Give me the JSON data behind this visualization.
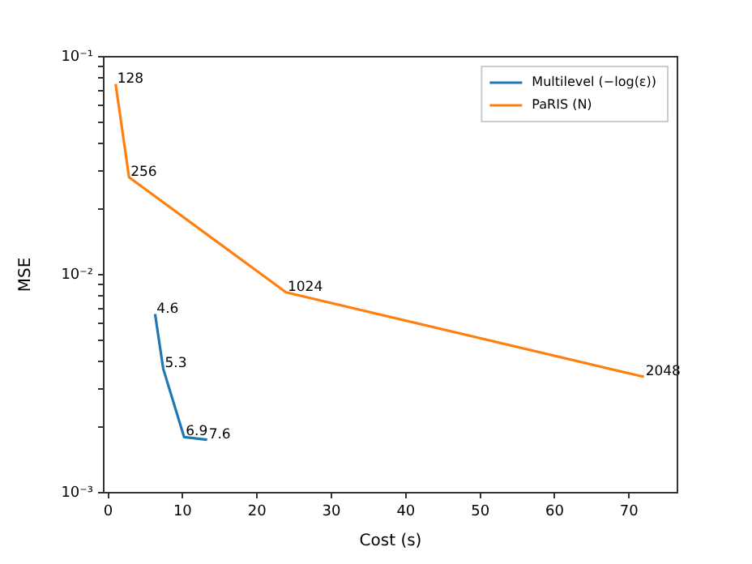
{
  "chart_data": {
    "type": "line",
    "xlabel": "Cost (s)",
    "ylabel": "MSE",
    "log": "y",
    "grid": false,
    "legend": "top right",
    "marker": "none",
    "line_style": "solid",
    "xlim": [
      -0.6,
      76.5
    ],
    "xticks": [
      0,
      10,
      20,
      30,
      40,
      50,
      60,
      70
    ],
    "ylim": [
      0.001,
      0.1
    ],
    "yticks": [
      {
        "value": 0.001,
        "label": "10⁻³"
      },
      {
        "value": 0.002,
        "label": null
      },
      {
        "value": 0.003,
        "label": null
      },
      {
        "value": 0.004,
        "label": null
      },
      {
        "value": 0.005,
        "label": null
      },
      {
        "value": 0.006,
        "label": null
      },
      {
        "value": 0.007,
        "label": null
      },
      {
        "value": 0.008,
        "label": null
      },
      {
        "value": 0.009,
        "label": null
      },
      {
        "value": 0.01,
        "label": "10⁻²"
      },
      {
        "value": 0.02,
        "label": null
      },
      {
        "value": 0.03,
        "label": null
      },
      {
        "value": 0.04,
        "label": null
      },
      {
        "value": 0.05,
        "label": null
      },
      {
        "value": 0.06,
        "label": null
      },
      {
        "value": 0.07,
        "label": null
      },
      {
        "value": 0.08,
        "label": null
      },
      {
        "value": 0.09,
        "label": null
      },
      {
        "value": 0.1,
        "label": "10⁻¹"
      }
    ],
    "series": [
      {
        "name": "Multilevel (−log(ε))",
        "color": "#1f77b4",
        "x": [
          6.3,
          7.4,
          10.2,
          13.3
        ],
        "values": [
          0.0066,
          0.0037,
          0.0018,
          0.00175
        ]
      },
      {
        "name": "PaRIS (N)",
        "color": "#ff7f0e",
        "x": [
          1.0,
          2.8,
          23.9,
          72
        ],
        "values": [
          0.075,
          0.028,
          0.0083,
          0.0034
        ]
      }
    ],
    "annotations": [
      {
        "text": "4.6",
        "x": 6.3,
        "y": 0.0066
      },
      {
        "text": "5.3",
        "x": 7.4,
        "y": 0.0037
      },
      {
        "text": "6.9",
        "x": 10.2,
        "y": 0.0018
      },
      {
        "text": "7.6",
        "x": 13.3,
        "y": 0.00175
      },
      {
        "text": "128",
        "x": 1.0,
        "y": 0.075
      },
      {
        "text": "256",
        "x": 2.8,
        "y": 0.028
      },
      {
        "text": "1024",
        "x": 23.9,
        "y": 0.0083
      },
      {
        "text": "2048",
        "x": 72,
        "y": 0.0034
      }
    ]
  }
}
